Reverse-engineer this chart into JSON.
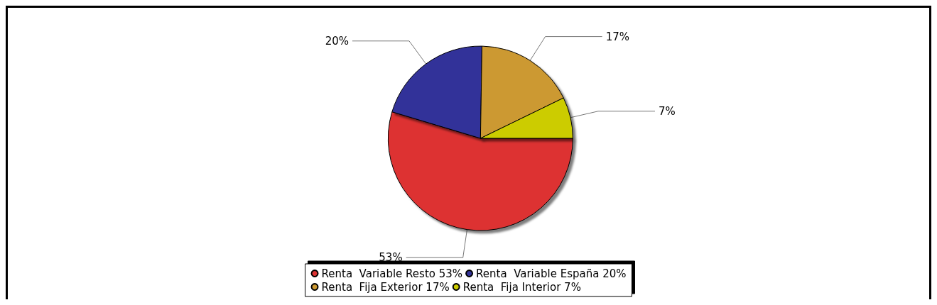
{
  "chart_data": {
    "type": "pie",
    "categories": [
      "Renta  Variable Resto",
      "Renta  Variable España",
      "Renta  Fija Exterior",
      "Renta  Fija Interior"
    ],
    "values": [
      53,
      20,
      17,
      7
    ],
    "value_labels": [
      "53%",
      "20%",
      "17%",
      "7%"
    ],
    "colors": [
      "#dd3333",
      "#333399",
      "#cc9933",
      "#cccc00"
    ],
    "legend": "bottom"
  }
}
